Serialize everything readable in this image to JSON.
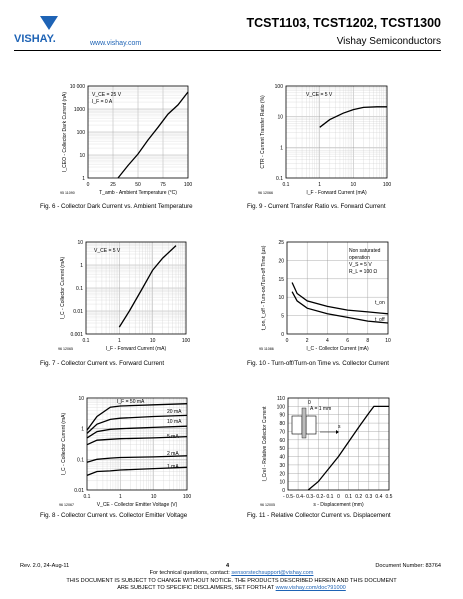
{
  "header": {
    "brand": "VISHAY.",
    "website": "www.vishay.com",
    "title": "TCST1103, TCST1202, TCST1300",
    "subtitle": "Vishay Semiconductors"
  },
  "figures": [
    {
      "id": "fig6",
      "caption": "Fig. 6 - Collector Dark Current vs. Ambient Temperature",
      "doc_code": "95 11090",
      "ylabel": "I_CEO - Collector Dark Current (nA)",
      "xlabel": "T_amb - Ambient Temperature (°C)",
      "yticks": [
        "10 000",
        "1000",
        "100",
        "10",
        "1"
      ],
      "xticks": [
        "0",
        "25",
        "50",
        "75",
        "100"
      ],
      "annotations": [
        "V_CE = 25 V",
        "I_F = 0 A"
      ]
    },
    {
      "id": "fig9",
      "caption": "Fig. 9 - Current Transfer Ratio vs. Forward Current",
      "doc_code": "96 12066",
      "ylabel": "CTR - Current Transfer Ratio (%)",
      "xlabel": "I_F - Forward Current (mA)",
      "yticks": [
        "100",
        "10",
        "1",
        "0.1"
      ],
      "xticks": [
        "0.1",
        "1",
        "10",
        "100"
      ],
      "annotations": [
        "V_CE = 5 V"
      ]
    },
    {
      "id": "fig7",
      "caption": "Fig. 7 - Collector Current vs. Forward Current",
      "doc_code": "96 12065",
      "ylabel": "I_C - Collector Current (mA)",
      "xlabel": "I_F - Forward Current (mA)",
      "yticks": [
        "10",
        "1",
        "0.1",
        "0.01",
        "0.001"
      ],
      "xticks": [
        "0.1",
        "1",
        "10",
        "100"
      ],
      "annotations": [
        "V_CE = 5 V"
      ]
    },
    {
      "id": "fig10",
      "caption": "Fig. 10 - Turn-off/Turn-on Time vs. Collector Current",
      "doc_code": "95 11086",
      "ylabel": "t_on, t_off - Turn-on/Turn-off Time (µs)",
      "xlabel": "I_C - Collector Current (mA)",
      "yticks": [
        "25",
        "20",
        "15",
        "10",
        "5",
        "0"
      ],
      "xticks": [
        "0",
        "2",
        "4",
        "6",
        "8",
        "10"
      ],
      "annotations": [
        "Non saturated",
        "operation",
        "V_S = 5 V",
        "R_L = 100 Ω",
        "t_on",
        "t_off"
      ]
    },
    {
      "id": "fig8",
      "caption": "Fig. 8 - Collector Current vs. Collector Emitter Voltage",
      "doc_code": "96 12067",
      "ylabel": "I_C - Collector Current (mA)",
      "xlabel": "V_CE - Collector Emitter Voltage (V)",
      "yticks": [
        "10",
        "1",
        "0.1",
        "0.01"
      ],
      "xticks": [
        "0.1",
        "1",
        "10",
        "100"
      ],
      "annotations": [
        "I_F = 50 mA",
        "20 mA",
        "10 mA",
        "5 mA",
        "2 mA",
        "1 mA"
      ]
    },
    {
      "id": "fig11",
      "caption": "Fig. 11 - Relative Collector Current vs. Displacement",
      "doc_code": "96 12005",
      "ylabel": "I_Crel - Relative Collector Current",
      "xlabel": "s - Displacement (mm)",
      "yticks": [
        "110",
        "100",
        "90",
        "80",
        "70",
        "60",
        "50",
        "40",
        "30",
        "20",
        "10",
        "0"
      ],
      "xticks": [
        "- 0.5",
        "- 0.4",
        "- 0.3",
        "- 0.2",
        "- 0.1",
        "0",
        "0.1",
        "0.2",
        "0.3",
        "0.4",
        "0.5"
      ],
      "annotations": [
        "A = 1 mm",
        "0",
        "s"
      ]
    }
  ],
  "chart_data": [
    {
      "type": "line",
      "title": "",
      "xlabel": "T_amb - Ambient Temperature (°C)",
      "ylabel": "I_CEO - Collector Dark Current (nA)",
      "xlim": [
        0,
        100
      ],
      "ylim": [
        1,
        10000
      ],
      "yscale": "log",
      "grid": true,
      "series": [
        {
          "x": [
            30,
            40,
            50,
            60,
            70,
            80,
            90,
            100
          ],
          "y": [
            1,
            3.5,
            11,
            45,
            160,
            600,
            1500,
            5500
          ]
        }
      ]
    },
    {
      "type": "line",
      "title": "",
      "xlabel": "I_F - Forward Current (mA)",
      "ylabel": "CTR - Current Transfer Ratio (%)",
      "xlim": [
        0.1,
        100
      ],
      "ylim": [
        0.1,
        100
      ],
      "xscale": "log",
      "yscale": "log",
      "grid": true,
      "series": [
        {
          "x": [
            1,
            2,
            5,
            10,
            20,
            50,
            100
          ],
          "y": [
            4.5,
            8,
            13,
            17,
            20,
            21,
            21
          ]
        }
      ]
    },
    {
      "type": "line",
      "title": "",
      "xlabel": "I_F - Forward Current (mA)",
      "ylabel": "I_C - Collector Current (mA)",
      "xlim": [
        0.1,
        100
      ],
      "ylim": [
        0.001,
        10
      ],
      "xscale": "log",
      "yscale": "log",
      "grid": true,
      "series": [
        {
          "x": [
            1,
            2,
            5,
            10,
            20,
            50
          ],
          "y": [
            0.002,
            0.01,
            0.1,
            0.6,
            2,
            7
          ]
        }
      ]
    },
    {
      "type": "line",
      "title": "",
      "xlabel": "I_C - Collector Current (mA)",
      "ylabel": "t_on, t_off - Turn-on/Turn-off Time (µs)",
      "xlim": [
        0,
        10
      ],
      "ylim": [
        0,
        25
      ],
      "grid": true,
      "series": [
        {
          "name": "t_on",
          "x": [
            0.5,
            1,
            2,
            4,
            6,
            8,
            10
          ],
          "y": [
            14,
            11,
            9,
            7.5,
            6.5,
            6,
            5.5
          ]
        },
        {
          "name": "t_off",
          "x": [
            0.5,
            1,
            2,
            4,
            6,
            8,
            10
          ],
          "y": [
            11.5,
            9,
            7,
            5.5,
            4.5,
            3.5,
            3
          ]
        }
      ]
    },
    {
      "type": "line",
      "title": "",
      "xlabel": "V_CE - Collector Emitter Voltage (V)",
      "ylabel": "I_C - Collector Current (mA)",
      "xlim": [
        0.1,
        100
      ],
      "ylim": [
        0.01,
        10
      ],
      "xscale": "log",
      "yscale": "log",
      "grid": true,
      "series": [
        {
          "name": "I_F = 50 mA",
          "x": [
            0.1,
            0.2,
            0.5,
            1,
            10,
            100
          ],
          "y": [
            0.9,
            2.5,
            5,
            5.5,
            6,
            6.5
          ]
        },
        {
          "name": "20 mA",
          "x": [
            0.1,
            0.2,
            0.5,
            1,
            10,
            100
          ],
          "y": [
            0.7,
            1.4,
            2,
            2.2,
            2.5,
            2.7
          ]
        },
        {
          "name": "10 mA",
          "x": [
            0.1,
            0.2,
            0.5,
            1,
            10,
            100
          ],
          "y": [
            0.5,
            0.8,
            0.95,
            1.0,
            1.1,
            1.2
          ]
        },
        {
          "name": "5 mA",
          "x": [
            0.1,
            0.2,
            0.5,
            1,
            10,
            100
          ],
          "y": [
            0.3,
            0.42,
            0.45,
            0.47,
            0.5,
            0.55
          ]
        },
        {
          "name": "2 mA",
          "x": [
            0.1,
            0.2,
            0.5,
            1,
            10,
            100
          ],
          "y": [
            0.08,
            0.1,
            0.11,
            0.115,
            0.12,
            0.13
          ]
        },
        {
          "name": "1 mA",
          "x": [
            0.1,
            0.2,
            0.5,
            1,
            10,
            100
          ],
          "y": [
            0.03,
            0.04,
            0.042,
            0.045,
            0.05,
            0.055
          ]
        }
      ]
    },
    {
      "type": "line",
      "title": "",
      "xlabel": "s - Displacement (mm)",
      "ylabel": "I_Crel - Relative Collector Current",
      "xlim": [
        -0.5,
        0.5
      ],
      "ylim": [
        0,
        110
      ],
      "grid": true,
      "series": [
        {
          "x": [
            -0.3,
            -0.2,
            0,
            0.2,
            0.3,
            0.35,
            0.5
          ],
          "y": [
            0,
            10,
            40,
            75,
            92,
            100,
            100
          ]
        }
      ]
    }
  ],
  "footer": {
    "rev": "Rev. 2.0, 24-Aug-11",
    "page": "4",
    "doc_number": "Document Number: 83764",
    "tech_questions": "For technical questions, contact:",
    "tech_email": "sensorstechsupport@vishay.com",
    "disclaimer1": "THIS DOCUMENT IS SUBJECT TO CHANGE WITHOUT NOTICE. THE PRODUCTS DESCRIBED HEREIN AND THIS DOCUMENT",
    "disclaimer2": "ARE SUBJECT TO SPECIFIC DISCLAIMERS, SET FORTH AT",
    "disclaimer_link": "www.vishay.com/doc?91000"
  }
}
